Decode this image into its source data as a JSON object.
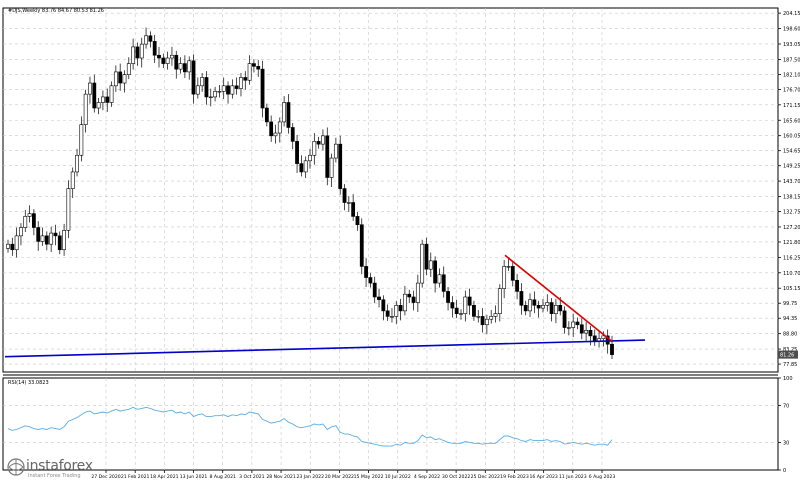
{
  "header": {
    "symbol_line": "#DJS,Weekly  83.76 84.67 80.53 81.26"
  },
  "rsi_header": "RSI(14) 33.0823",
  "last_price_badge": "81.26",
  "brand": {
    "name": "instaforex",
    "tagline": "Instant Forex Trading"
  },
  "colors": {
    "up_candle": "#ffffff",
    "down_candle": "#000000",
    "trendline_red": "#e00000",
    "support_blue": "#0000c8",
    "rsi_line": "#5aaee6",
    "grid": "#c8c8c8"
  },
  "chart_data": [
    {
      "type": "candlestick",
      "title": "#DJS,Weekly",
      "y_ticks": [
        "204.15",
        "198.60",
        "193.05",
        "187.50",
        "182.10",
        "176.70",
        "171.15",
        "165.60",
        "160.05",
        "154.65",
        "149.25",
        "143.70",
        "138.15",
        "132.75",
        "127.20",
        "121.80",
        "116.25",
        "110.70",
        "105.15",
        "99.75",
        "94.35",
        "88.80",
        "83.25",
        "77.85"
      ],
      "x_ticks": [
        "27 Dec 2020",
        "21 Feb 2021",
        "18 Apr 2021",
        "13 Jun 2021",
        "8 Aug 2021",
        "3 Oct 2021",
        "28 Nov 2021",
        "23 Jan 2022",
        "20 Mar 2022",
        "15 May 2022",
        "10 Jul 2022",
        "4 Sep 2022",
        "30 Oct 2022",
        "25 Dec 2022",
        "19 Feb 2023",
        "16 Apr 2023",
        "11 Jun 2023",
        "6 Aug 2023"
      ],
      "ylim": [
        75.0,
        206.0
      ],
      "last_price": 81.26,
      "closes": [
        121,
        119,
        124,
        127,
        131,
        132,
        127,
        122,
        124,
        121,
        125,
        124,
        119,
        126,
        141,
        147,
        153,
        164,
        175,
        179,
        170,
        172,
        174,
        172,
        178,
        183,
        179,
        182,
        186,
        192,
        188,
        193,
        196,
        194,
        189,
        188,
        186,
        188,
        189,
        184,
        186,
        183,
        187,
        175,
        178,
        181,
        174,
        174,
        176,
        176,
        178,
        175,
        178,
        177,
        181,
        180,
        186,
        185,
        184,
        170,
        165,
        160,
        161,
        165,
        172,
        163,
        158,
        150,
        147,
        151,
        153,
        158,
        157,
        160,
        145,
        152,
        157,
        141,
        136,
        136,
        131,
        128,
        113,
        109,
        107,
        102,
        101,
        97,
        95,
        95,
        99,
        97,
        103,
        102,
        100,
        107,
        121,
        112,
        115,
        107,
        110,
        104,
        100,
        98,
        96,
        96,
        102,
        99,
        95,
        95,
        92,
        94,
        95,
        96,
        105,
        113,
        113,
        108,
        104,
        99,
        97,
        101,
        99,
        98,
        99,
        100,
        96,
        99,
        97,
        91,
        91,
        93,
        92,
        89,
        90,
        88,
        86,
        87,
        88,
        85,
        81.26
      ],
      "support_line": {
        "from": 80.5,
        "to": 86.5
      },
      "red_trendline": {
        "from": 117.0,
        "to": 86.0
      }
    },
    {
      "type": "line",
      "title": "RSI(14) 33.0823",
      "y_ticks": [
        "100",
        "70",
        "30",
        "0"
      ],
      "ylim": [
        0,
        100
      ],
      "values": [
        45,
        43,
        44,
        46,
        48,
        47,
        45,
        44,
        45,
        44,
        46,
        45,
        44,
        47,
        53,
        55,
        57,
        60,
        63,
        64,
        61,
        62,
        63,
        62,
        64,
        66,
        64,
        65,
        66,
        68,
        66,
        67,
        68,
        67,
        65,
        64,
        63,
        64,
        65,
        62,
        63,
        61,
        63,
        58,
        60,
        61,
        58,
        58,
        59,
        59,
        60,
        58,
        60,
        59,
        61,
        60,
        63,
        62,
        61,
        55,
        53,
        51,
        52,
        53,
        56,
        52,
        50,
        47,
        46,
        47,
        48,
        50,
        49,
        50,
        44,
        47,
        48,
        41,
        39,
        39,
        37,
        36,
        31,
        30,
        29,
        28,
        27,
        26,
        26,
        26,
        28,
        27,
        30,
        29,
        29,
        32,
        38,
        35,
        36,
        33,
        34,
        32,
        30,
        29,
        29,
        29,
        31,
        30,
        29,
        29,
        28,
        29,
        29,
        29,
        33,
        37,
        37,
        35,
        34,
        32,
        31,
        33,
        32,
        32,
        32,
        33,
        31,
        32,
        31,
        28,
        29,
        30,
        29,
        28,
        29,
        28,
        27,
        28,
        28,
        27,
        33
      ]
    }
  ]
}
